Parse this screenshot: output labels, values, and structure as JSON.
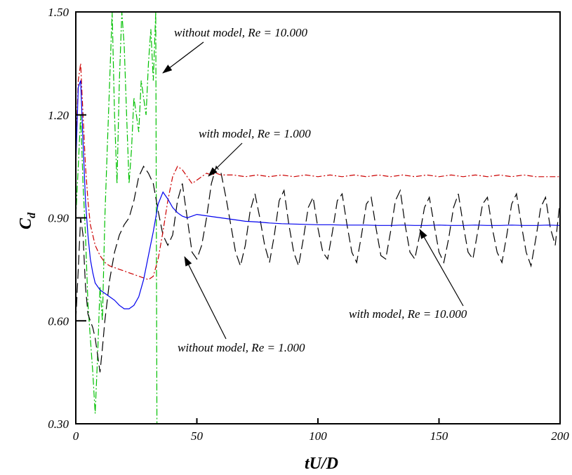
{
  "chart_data": {
    "type": "line",
    "title": "",
    "xlabel": "tU/D",
    "ylabel_main": "C",
    "ylabel_sub": "d",
    "xlim": [
      0,
      200
    ],
    "ylim": [
      0.3,
      1.5
    ],
    "x_ticks": [
      0,
      50,
      100,
      150,
      200
    ],
    "x_tick_labels": [
      "0",
      "50",
      "100",
      "150",
      "200"
    ],
    "y_ticks": [
      0.3,
      0.6,
      0.9,
      1.2,
      1.5
    ],
    "y_tick_labels": [
      "0.30",
      "0.60",
      "0.90",
      "1.20",
      "1.50"
    ],
    "grid": false,
    "series": [
      {
        "id": "without-model-re10000",
        "color": "#00c000",
        "dash": "10,3,2,3",
        "x": [
          0,
          1,
          2,
          3,
          4,
          5,
          6,
          7,
          8,
          9,
          10,
          11,
          12,
          13,
          14,
          15,
          16,
          17,
          18,
          19,
          20,
          21,
          22,
          23,
          24,
          25,
          26,
          27,
          28,
          29,
          30,
          31,
          32,
          33,
          33.5
        ],
        "y": [
          0.9,
          1.05,
          1.2,
          1.0,
          0.85,
          0.65,
          0.55,
          0.45,
          0.33,
          0.5,
          0.7,
          0.6,
          0.9,
          1.1,
          1.3,
          1.5,
          1.2,
          1.0,
          1.3,
          1.5,
          1.4,
          1.2,
          1.0,
          1.1,
          1.25,
          1.2,
          1.15,
          1.3,
          1.25,
          1.2,
          1.35,
          1.45,
          1.3,
          1.5,
          0.3
        ]
      },
      {
        "id": "without-model-re1000",
        "color": "#000000",
        "dash": "14,6",
        "x": [
          0,
          1,
          2,
          3,
          4,
          5,
          6,
          7,
          8,
          9,
          10,
          11,
          12,
          14,
          16,
          18,
          20,
          22,
          24,
          26,
          28,
          30,
          32,
          34,
          36,
          38,
          40,
          42,
          44,
          46,
          48,
          50,
          52,
          54,
          56,
          58,
          60,
          62,
          64,
          66,
          68,
          70,
          72,
          74,
          76,
          78,
          80,
          82,
          84,
          86,
          88,
          90,
          92,
          94,
          96,
          98,
          100,
          102,
          104,
          106,
          108,
          110,
          112,
          114,
          116,
          118,
          120,
          122,
          124,
          126,
          128,
          130,
          132,
          134,
          136,
          138,
          140,
          142,
          144,
          146,
          148,
          150,
          152,
          154,
          156,
          158,
          160,
          162,
          164,
          166,
          168,
          170,
          172,
          174,
          176,
          178,
          180,
          182,
          184,
          186,
          188,
          190,
          192,
          194,
          196,
          198,
          200
        ],
        "y": [
          0.6,
          0.75,
          0.9,
          0.85,
          0.7,
          0.62,
          0.6,
          0.58,
          0.55,
          0.5,
          0.45,
          0.52,
          0.6,
          0.72,
          0.8,
          0.85,
          0.88,
          0.9,
          0.95,
          1.02,
          1.05,
          1.03,
          1.0,
          0.92,
          0.85,
          0.82,
          0.85,
          0.95,
          1.0,
          0.9,
          0.8,
          0.78,
          0.82,
          0.9,
          1.0,
          1.05,
          1.03,
          0.96,
          0.88,
          0.8,
          0.76,
          0.82,
          0.92,
          0.97,
          0.9,
          0.82,
          0.77,
          0.85,
          0.95,
          0.98,
          0.88,
          0.8,
          0.76,
          0.84,
          0.93,
          0.96,
          0.87,
          0.8,
          0.78,
          0.86,
          0.95,
          0.97,
          0.88,
          0.8,
          0.77,
          0.85,
          0.94,
          0.96,
          0.87,
          0.79,
          0.78,
          0.86,
          0.95,
          0.98,
          0.88,
          0.8,
          0.78,
          0.85,
          0.93,
          0.96,
          0.88,
          0.8,
          0.77,
          0.84,
          0.93,
          0.97,
          0.88,
          0.8,
          0.78,
          0.86,
          0.94,
          0.96,
          0.87,
          0.8,
          0.77,
          0.85,
          0.94,
          0.97,
          0.88,
          0.8,
          0.76,
          0.84,
          0.93,
          0.96,
          0.87,
          0.82,
          0.95
        ]
      },
      {
        "id": "with-model-re1000",
        "color": "#cc0000",
        "dash": "8,3,2,3",
        "x": [
          0,
          1,
          2,
          3,
          4,
          5,
          6,
          7,
          8,
          10,
          12,
          14,
          16,
          18,
          20,
          22,
          24,
          26,
          28,
          30,
          32,
          34,
          36,
          38,
          40,
          42,
          44,
          46,
          48,
          50,
          52,
          54,
          56,
          58,
          60,
          65,
          70,
          75,
          80,
          85,
          90,
          95,
          100,
          105,
          110,
          115,
          120,
          125,
          130,
          135,
          140,
          145,
          150,
          155,
          160,
          165,
          170,
          175,
          180,
          185,
          190,
          195,
          200
        ],
        "y": [
          1.1,
          1.3,
          1.35,
          1.2,
          1.05,
          0.95,
          0.88,
          0.85,
          0.82,
          0.79,
          0.77,
          0.76,
          0.755,
          0.75,
          0.745,
          0.74,
          0.735,
          0.73,
          0.725,
          0.72,
          0.73,
          0.78,
          0.86,
          0.95,
          1.02,
          1.05,
          1.04,
          1.02,
          1.0,
          1.01,
          1.02,
          1.03,
          1.025,
          1.03,
          1.025,
          1.025,
          1.02,
          1.025,
          1.02,
          1.025,
          1.02,
          1.025,
          1.02,
          1.025,
          1.02,
          1.025,
          1.02,
          1.025,
          1.02,
          1.025,
          1.02,
          1.025,
          1.02,
          1.025,
          1.02,
          1.025,
          1.02,
          1.025,
          1.02,
          1.025,
          1.02,
          1.02,
          1.02
        ]
      },
      {
        "id": "with-model-re10000",
        "color": "#0000ee",
        "dash": "",
        "x": [
          0,
          1,
          2,
          3,
          4,
          5,
          6,
          7,
          8,
          10,
          12,
          14,
          16,
          18,
          20,
          22,
          24,
          26,
          28,
          30,
          32,
          34,
          36,
          38,
          40,
          42,
          44,
          46,
          48,
          50,
          55,
          60,
          65,
          70,
          75,
          80,
          85,
          90,
          95,
          100,
          105,
          110,
          115,
          120,
          125,
          130,
          135,
          140,
          145,
          150,
          155,
          160,
          165,
          170,
          175,
          180,
          185,
          190,
          195,
          200
        ],
        "y": [
          1.05,
          1.28,
          1.3,
          1.12,
          0.95,
          0.85,
          0.78,
          0.74,
          0.71,
          0.69,
          0.68,
          0.67,
          0.66,
          0.645,
          0.635,
          0.635,
          0.645,
          0.67,
          0.72,
          0.79,
          0.86,
          0.94,
          0.975,
          0.955,
          0.93,
          0.915,
          0.905,
          0.9,
          0.905,
          0.91,
          0.905,
          0.9,
          0.895,
          0.89,
          0.888,
          0.885,
          0.883,
          0.882,
          0.881,
          0.88,
          0.88,
          0.879,
          0.879,
          0.879,
          0.878,
          0.878,
          0.879,
          0.878,
          0.878,
          0.879,
          0.878,
          0.878,
          0.879,
          0.878,
          0.878,
          0.879,
          0.878,
          0.878,
          0.879,
          0.878
        ]
      }
    ],
    "annotations": [
      {
        "id": "annot-without-model-re10000",
        "text": "without model, Re = 10.000"
      },
      {
        "id": "annot-with-model-re1000",
        "text": "with model, Re = 1.000"
      },
      {
        "id": "annot-with-model-re10000",
        "text": "with model, Re = 10.000"
      },
      {
        "id": "annot-without-model-re1000",
        "text": "without model, Re = 1.000"
      }
    ]
  }
}
